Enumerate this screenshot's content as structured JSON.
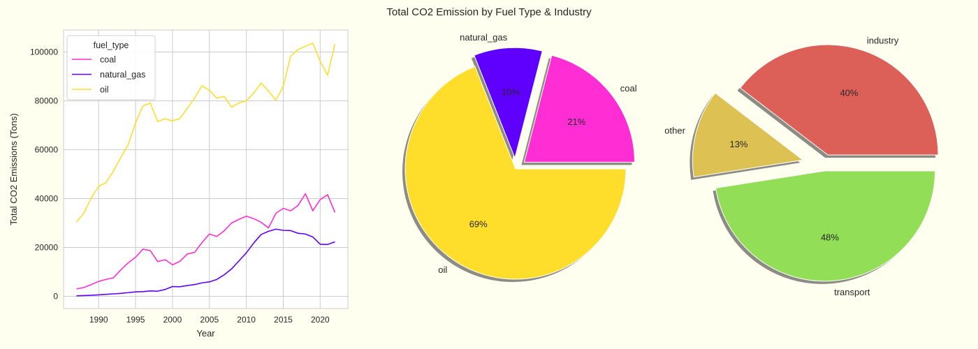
{
  "figure": {
    "title": "Total CO2 Emission by Fuel Type & Industry",
    "background": "#fffff0"
  },
  "chart_data": [
    {
      "type": "line",
      "title": "",
      "xlabel": "Year",
      "ylabel": "Total CO2 Emissions (Tons)",
      "xlim": [
        1985.25,
        2023.75
      ],
      "ylim": [
        -5000,
        109000
      ],
      "xticks": [
        1990,
        1995,
        2000,
        2005,
        2010,
        2015,
        2020
      ],
      "yticks": [
        0,
        20000,
        40000,
        60000,
        80000,
        100000
      ],
      "grid": true,
      "legend": {
        "title": "fuel_type",
        "placement": "top-left"
      },
      "x": [
        1987,
        1988,
        1989,
        1990,
        1991,
        1992,
        1993,
        1994,
        1995,
        1996,
        1997,
        1998,
        1999,
        2000,
        2001,
        2002,
        2003,
        2004,
        2005,
        2006,
        2007,
        2008,
        2009,
        2010,
        2011,
        2012,
        2013,
        2014,
        2015,
        2016,
        2017,
        2018,
        2019,
        2020,
        2021,
        2022
      ],
      "series": [
        {
          "name": "coal",
          "color": "#ff2dd4",
          "values": [
            3000,
            3600,
            4800,
            6100,
            6900,
            7600,
            10800,
            13700,
            16000,
            19300,
            18700,
            14200,
            15000,
            12900,
            14300,
            17300,
            18000,
            22000,
            25500,
            24500,
            26800,
            30000,
            31500,
            32800,
            31800,
            30300,
            28000,
            34000,
            36000,
            35000,
            37200,
            42000,
            35000,
            39600,
            41600,
            34300
          ]
        },
        {
          "name": "natural_gas",
          "color": "#5f00ff",
          "values": [
            200,
            300,
            400,
            600,
            800,
            1000,
            1200,
            1500,
            1800,
            1900,
            2200,
            2100,
            2800,
            4000,
            3900,
            4400,
            4800,
            5500,
            5900,
            6900,
            8800,
            11200,
            14500,
            17800,
            21800,
            25300,
            26600,
            27500,
            27000,
            26900,
            25800,
            25500,
            24300,
            21300,
            21200,
            22300
          ]
        },
        {
          "name": "oil",
          "color": "#ffde2b",
          "values": [
            30500,
            34000,
            40300,
            45000,
            46500,
            51300,
            56800,
            62000,
            71000,
            77900,
            79100,
            71500,
            72700,
            71800,
            72800,
            76900,
            81200,
            86200,
            84300,
            81100,
            81800,
            77400,
            79200,
            80000,
            83200,
            87300,
            84000,
            80300,
            86000,
            98300,
            101000,
            102300,
            103600,
            96200,
            90500,
            103300
          ]
        }
      ]
    },
    {
      "type": "pie",
      "title": "",
      "labels": [
        "coal",
        "natural_gas",
        "oil"
      ],
      "values": [
        21,
        10,
        69
      ],
      "percent_labels": [
        "21%",
        "10%",
        "69%"
      ],
      "colors": [
        "#ff2dd4",
        "#5f00ff",
        "#ffde2b"
      ],
      "explode": [
        0.1,
        0.1,
        0
      ],
      "shadow": true
    },
    {
      "type": "pie",
      "title": "",
      "labels": [
        "industry",
        "other",
        "transport"
      ],
      "values": [
        40,
        13,
        48
      ],
      "percent_labels": [
        "40%",
        "13%",
        "48%"
      ],
      "colors": [
        "#dd6058",
        "#ddc253",
        "#92de57"
      ],
      "explode": [
        0.1,
        0.2,
        0.05
      ],
      "shadow": true
    }
  ]
}
